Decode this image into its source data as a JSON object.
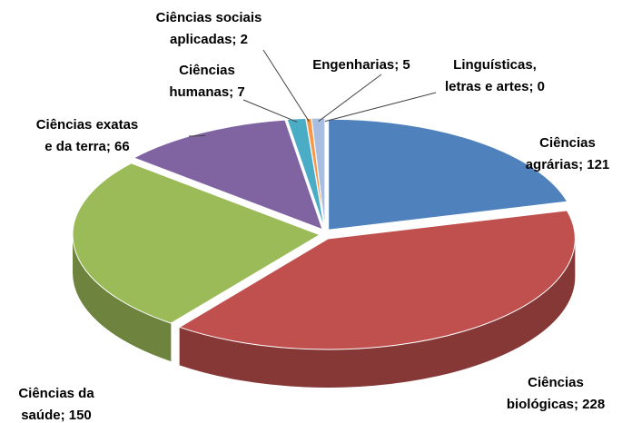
{
  "chart_data": {
    "type": "pie3d",
    "value_labels": [
      [
        "Ciências",
        "agrárias; 121"
      ],
      [
        "Ciências",
        "biológicas; 228"
      ],
      [
        "Ciências da",
        "saúde; 150"
      ],
      [
        "Ciências exatas",
        "e da terra; 66"
      ],
      [
        "Ciências",
        "humanas; 7"
      ],
      [
        "Ciências sociais",
        "aplicadas; 2"
      ],
      [
        "Engenharias;  5"
      ],
      [
        "Linguísticas,",
        "letras e artes; 0"
      ]
    ],
    "values": [
      121,
      228,
      150,
      66,
      7,
      2,
      5,
      0
    ],
    "colors": [
      "#4f81bd",
      "#c0504d",
      "#9bbb59",
      "#8064a2",
      "#4bacc6",
      "#f79646",
      "#a9bde0",
      "#ffffff"
    ]
  }
}
